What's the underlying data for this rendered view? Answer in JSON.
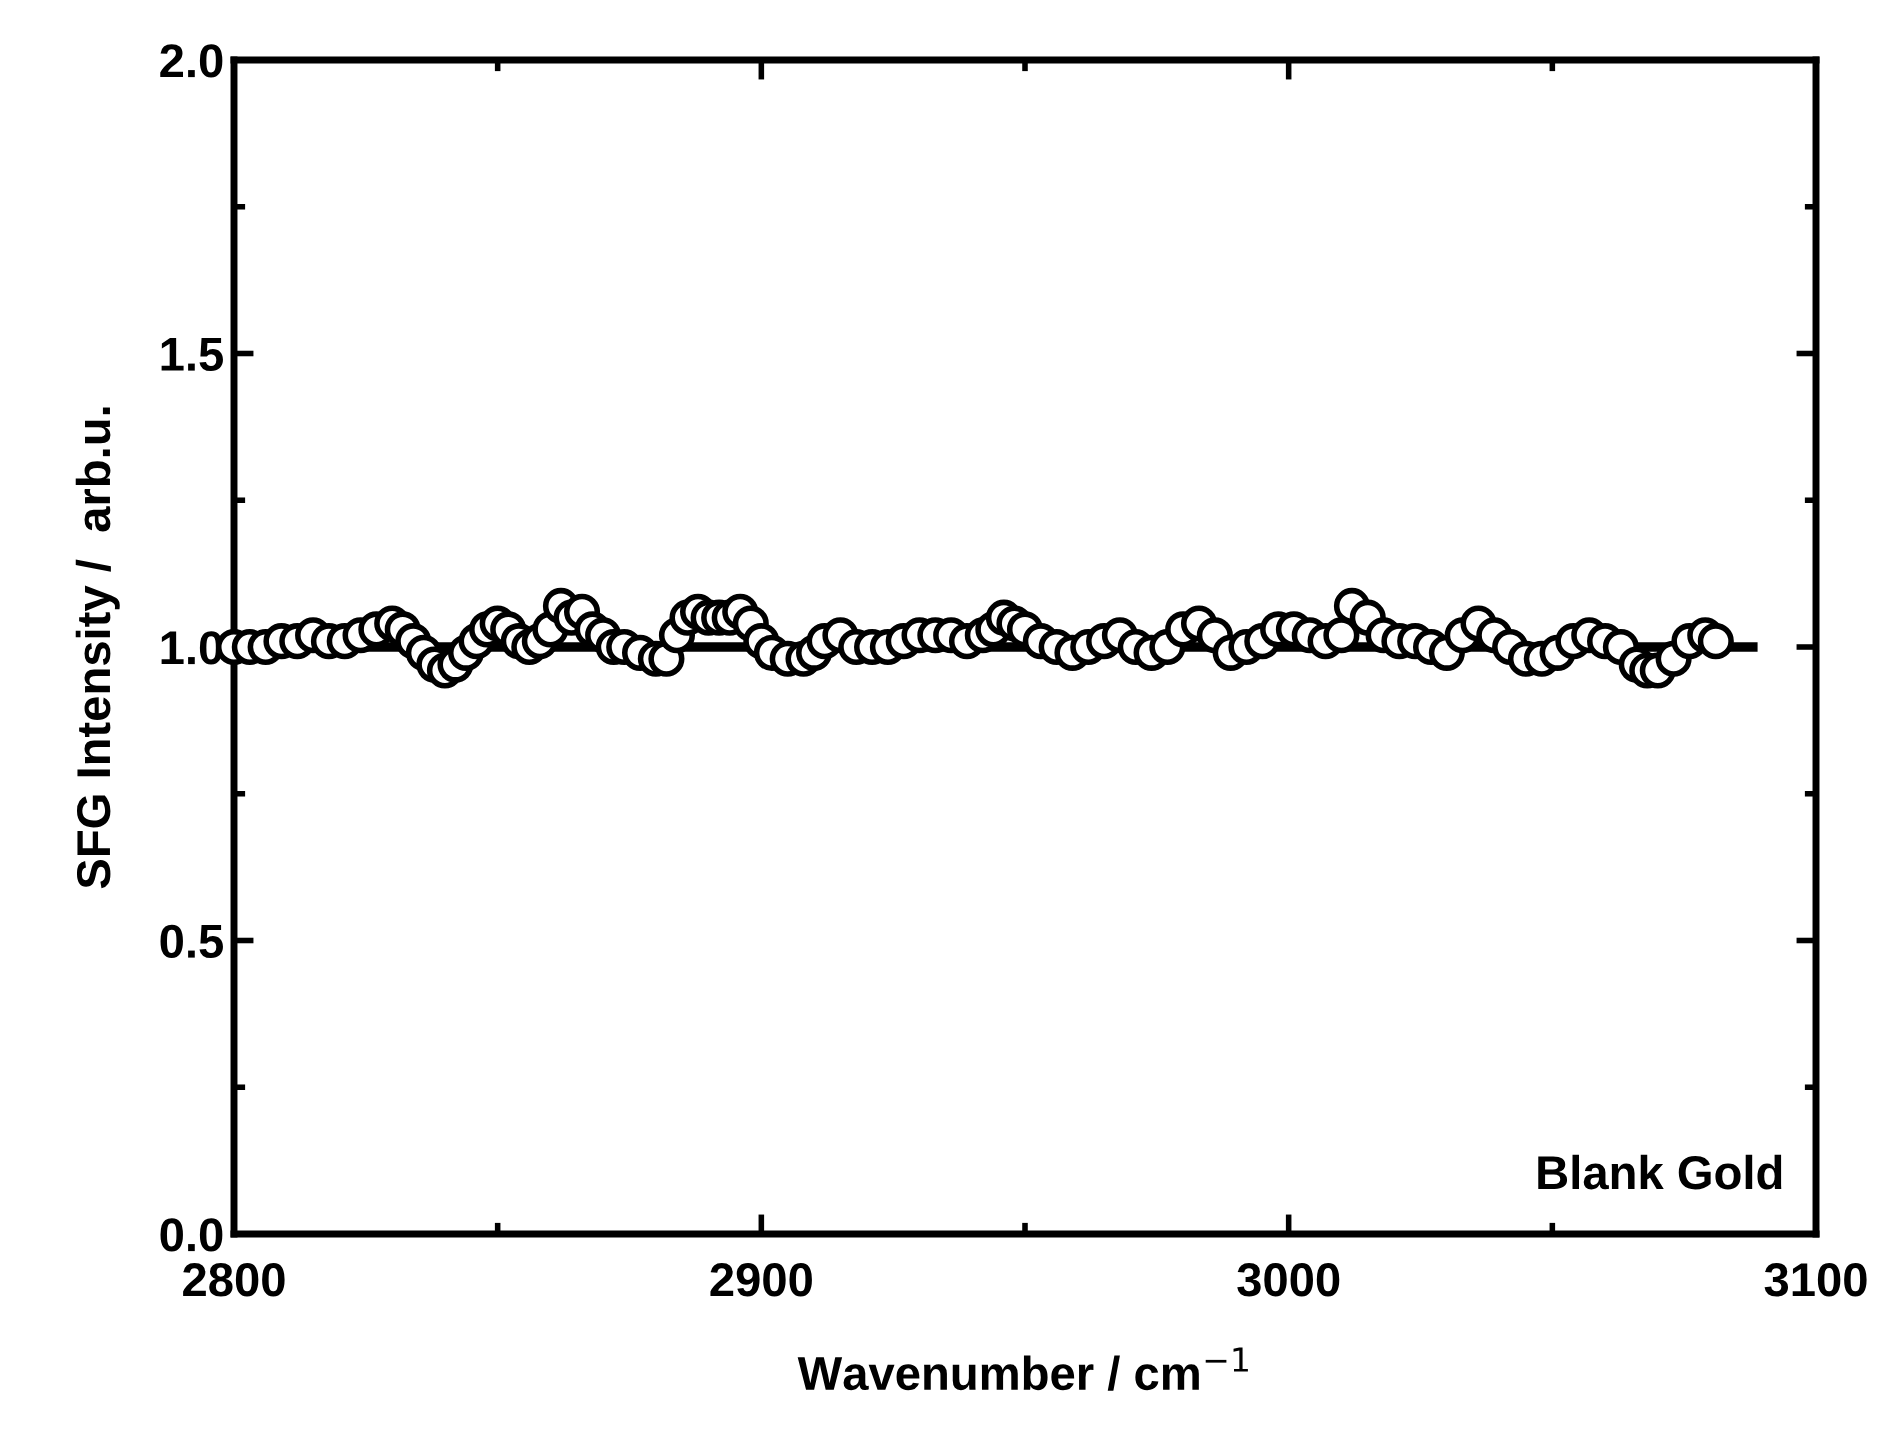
{
  "chart_data": {
    "type": "scatter",
    "xlabel": "Wavenumber / cm$^{−1}$",
    "ylabel": "SFG Intensity /  arb.u.",
    "xlim": [
      2800,
      3100
    ],
    "ylim": [
      0,
      2
    ],
    "xticks": [
      2800,
      2900,
      3000,
      3100
    ],
    "yticks": [
      {
        "value": 0,
        "label": "0.0"
      },
      {
        "value": 0.5,
        "label": "0.5"
      },
      {
        "value": 1,
        "label": "1.0"
      },
      {
        "value": 1.5,
        "label": "1.5"
      },
      {
        "value": 2,
        "label": "2.0"
      }
    ],
    "grid": false,
    "legend": false,
    "marker": "circle",
    "annotations": [
      "Blank Gold"
    ],
    "series": [
      {
        "color": "#ffffff",
        "x": [
          2800,
          2803,
          2806,
          2809,
          2812,
          2815,
          2818,
          2821,
          2824,
          2827,
          2830,
          2832,
          2834,
          2836,
          2838,
          2840,
          2842,
          2844,
          2846,
          2848,
          2850,
          2852,
          2854,
          2856,
          2858,
          2860,
          2862,
          2864,
          2866,
          2868,
          2870,
          2872,
          2874,
          2877,
          2880,
          2882,
          2884,
          2886,
          2888,
          2890,
          2892,
          2894,
          2896,
          2898,
          2900,
          2902,
          2905,
          2908,
          2910,
          2912,
          2915,
          2918,
          2921,
          2924,
          2927,
          2930,
          2933,
          2936,
          2939,
          2942,
          2944,
          2946,
          2948,
          2950,
          2953,
          2956,
          2959,
          2962,
          2965,
          2968,
          2971,
          2974,
          2977,
          2980,
          2983,
          2986,
          2989,
          2992,
          2995,
          2998,
          3001,
          3004,
          3007,
          3010,
          3012,
          3015,
          3018,
          3021,
          3024,
          3027,
          3030,
          3033,
          3036,
          3039,
          3042,
          3045,
          3048,
          3051,
          3054,
          3057,
          3060,
          3063,
          3066,
          3068,
          3070,
          3073,
          3076,
          3079,
          3081
        ],
        "values": [
          1.0,
          1.0,
          1.0,
          1.01,
          1.01,
          1.02,
          1.01,
          1.01,
          1.02,
          1.03,
          1.04,
          1.03,
          1.01,
          0.99,
          0.97,
          0.96,
          0.97,
          0.99,
          1.01,
          1.03,
          1.04,
          1.03,
          1.01,
          1.0,
          1.01,
          1.03,
          1.07,
          1.05,
          1.06,
          1.03,
          1.02,
          1.0,
          1.0,
          0.99,
          0.98,
          0.98,
          1.02,
          1.05,
          1.06,
          1.05,
          1.05,
          1.05,
          1.06,
          1.04,
          1.01,
          0.99,
          0.98,
          0.98,
          0.99,
          1.01,
          1.02,
          1.0,
          1.0,
          1.0,
          1.01,
          1.02,
          1.02,
          1.02,
          1.01,
          1.02,
          1.03,
          1.05,
          1.04,
          1.03,
          1.01,
          1.0,
          0.99,
          1.0,
          1.01,
          1.02,
          1.0,
          0.99,
          1.0,
          1.03,
          1.04,
          1.02,
          0.99,
          1.0,
          1.01,
          1.03,
          1.03,
          1.02,
          1.01,
          1.02,
          1.07,
          1.05,
          1.02,
          1.01,
          1.01,
          1.0,
          0.99,
          1.02,
          1.04,
          1.02,
          1.0,
          0.98,
          0.98,
          0.99,
          1.01,
          1.02,
          1.01,
          1.0,
          0.97,
          0.96,
          0.96,
          0.98,
          1.01,
          1.02,
          1.01
        ]
      },
      {
        "type": "line",
        "color": "#000000",
        "line_style": "solid",
        "marker": "none",
        "x": [
          2800,
          3088
        ],
        "values": [
          1.0,
          1.0
        ]
      }
    ]
  }
}
